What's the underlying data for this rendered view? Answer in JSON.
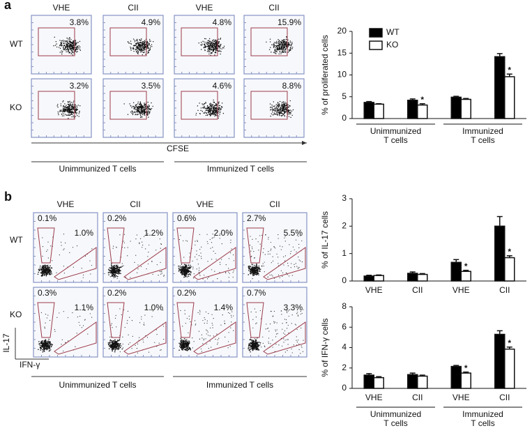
{
  "panel_a": {
    "label": "a",
    "columns": [
      "VHE",
      "CII",
      "VHE",
      "CII"
    ],
    "rows": [
      "WT",
      "KO"
    ],
    "percentages": [
      [
        "3.8%",
        "4.9%",
        "4.8%",
        "15.9%"
      ],
      [
        "3.2%",
        "3.5%",
        "4.6%",
        "8.8%"
      ]
    ],
    "x_axis_label": "CFSE",
    "groups": [
      "Unimmunized T cells",
      "Immunized T cells"
    ]
  },
  "panel_b": {
    "label": "b",
    "columns": [
      "VHE",
      "CII",
      "VHE",
      "CII"
    ],
    "rows": [
      "WT",
      "KO"
    ],
    "percentages": [
      [
        [
          "0.1%",
          "1.0%"
        ],
        [
          "0.2%",
          "1.2%"
        ],
        [
          "0.6%",
          "2.0%"
        ],
        [
          "2.7%",
          "5.5%"
        ]
      ],
      [
        [
          "0.3%",
          "1.1%"
        ],
        [
          "0.2%",
          "1.0%"
        ],
        [
          "0.2%",
          "1.4%"
        ],
        [
          "0.7%",
          "3.3%"
        ]
      ]
    ],
    "y_axis_label": "IL-17",
    "x_axis_label": "IFN-γ",
    "groups": [
      "Unimmunized T cells",
      "Immunized T cells"
    ]
  },
  "chart_data": [
    {
      "type": "bar",
      "ylabel": "% of proliferated cells",
      "categories": [
        null,
        null,
        null,
        null
      ],
      "groups": [
        [
          "Unimmunized",
          "T cells"
        ],
        [
          "Immunized",
          "T cells"
        ]
      ],
      "series": [
        {
          "name": "WT",
          "color": "#000000",
          "values": [
            3.7,
            4.2,
            4.9,
            14.2
          ],
          "errors": [
            0.2,
            0.3,
            0.2,
            0.7
          ]
        },
        {
          "name": "KO",
          "color": "#ffffff",
          "values": [
            3.3,
            3.1,
            4.4,
            9.6
          ],
          "errors": [
            0.1,
            0.3,
            0.2,
            0.6
          ],
          "significance": [
            null,
            "*",
            null,
            "*"
          ]
        }
      ],
      "ylim": [
        0,
        20
      ],
      "yticks": [
        0,
        5,
        10,
        15,
        20
      ],
      "legend": "upper left"
    },
    {
      "type": "bar",
      "ylabel": "% of IL-17 cells",
      "categories": [
        "VHE",
        "CII",
        "VHE",
        "CII"
      ],
      "series": [
        {
          "name": "WT",
          "color": "#000000",
          "values": [
            0.18,
            0.28,
            0.68,
            2.0
          ],
          "errors": [
            0.03,
            0.05,
            0.1,
            0.35
          ]
        },
        {
          "name": "KO",
          "color": "#ffffff",
          "values": [
            0.2,
            0.24,
            0.35,
            0.85
          ],
          "errors": [
            0.02,
            0.03,
            0.04,
            0.07
          ],
          "significance": [
            null,
            null,
            "*",
            "*"
          ]
        }
      ],
      "ylim": [
        0,
        3
      ],
      "yticks": [
        0,
        1,
        2,
        3
      ]
    },
    {
      "type": "bar",
      "ylabel": "% of IFN-γ cells",
      "categories": [
        "VHE",
        "CII",
        "VHE",
        "CII"
      ],
      "groups": [
        [
          "Unimmunized",
          "T cells"
        ],
        [
          "Immunized",
          "T cells"
        ]
      ],
      "series": [
        {
          "name": "WT",
          "color": "#000000",
          "values": [
            1.3,
            1.35,
            2.15,
            5.3
          ],
          "errors": [
            0.15,
            0.15,
            0.1,
            0.35
          ]
        },
        {
          "name": "KO",
          "color": "#ffffff",
          "values": [
            1.05,
            1.2,
            1.5,
            3.85
          ],
          "errors": [
            0.1,
            0.1,
            0.1,
            0.2
          ],
          "significance": [
            null,
            null,
            "*",
            "*"
          ]
        }
      ],
      "ylim": [
        0,
        8
      ],
      "yticks": [
        0,
        2,
        4,
        6,
        8
      ]
    }
  ]
}
